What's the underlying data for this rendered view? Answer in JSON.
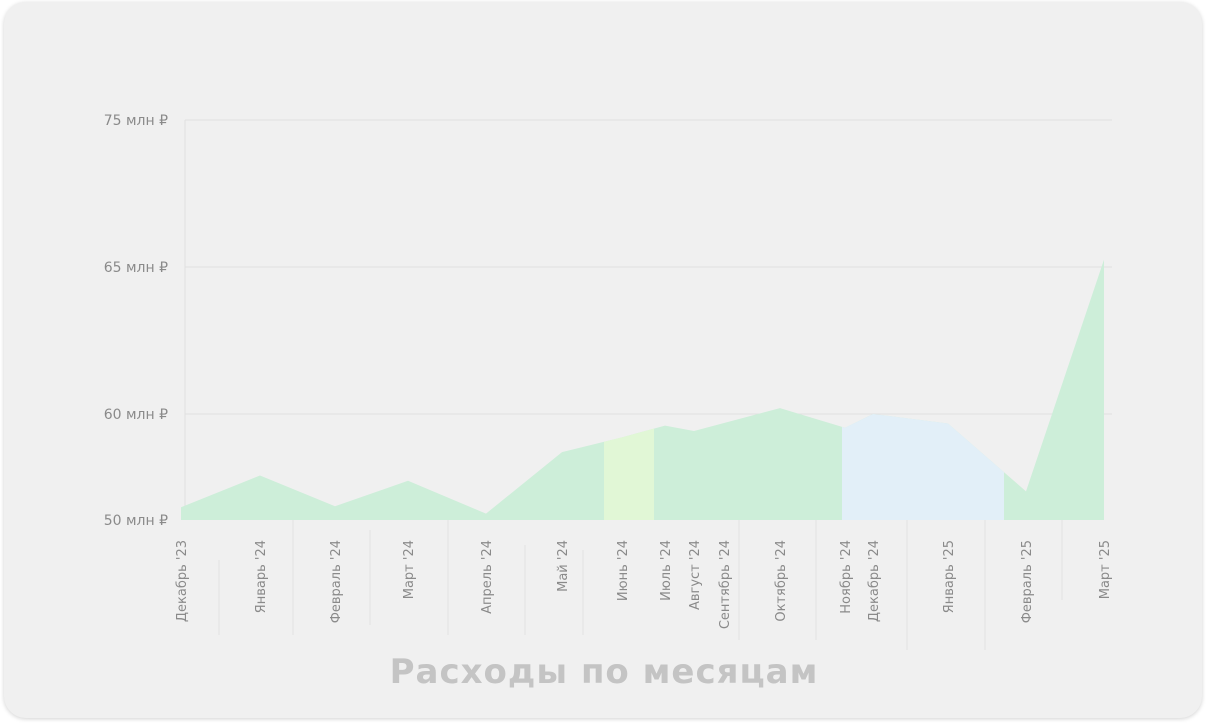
{
  "colors": {
    "card_bg": "#f0f0f0",
    "area_green": "#cdeed9",
    "band_lime": "#e1f7d6",
    "band_blue": "#e2eff8",
    "tick_text": "#8a8a8a",
    "title_text": "#c4c4c4",
    "grid": "#e0e0e0"
  },
  "chart_data": {
    "type": "area",
    "title": "Расходы по месяцам",
    "xlabel": "",
    "ylabel": "",
    "y_ticks": [
      {
        "value": 50,
        "label": "50 млн ₽"
      },
      {
        "value": 60,
        "label": "60 млн ₽"
      },
      {
        "value": 65,
        "label": "65 млн ₽"
      },
      {
        "value": 75,
        "label": "75 млн ₽"
      }
    ],
    "x_ticks": [
      "Декабрь '23",
      "Январь '24",
      "Февраль '24",
      "Март '24",
      "Апрель '24",
      "Май '24",
      "Июнь '24",
      "Июль '24",
      "Август '24",
      "Сентябрь '24",
      "Октябрь '24",
      "Ноябрь '24",
      "Декабрь '24",
      "Январь '25",
      "Февраль '25",
      "Март '25"
    ],
    "points": [
      {
        "x": "Декабрь '23",
        "y": 51.2
      },
      {
        "x": "Январь '24",
        "y": 54.2
      },
      {
        "x": "Февраль '24",
        "y": 51.3
      },
      {
        "x": "Март '24",
        "y": 53.7
      },
      {
        "x": "Апрель '24",
        "y": 50.6
      },
      {
        "x": "Май '24",
        "y": 56.4
      },
      {
        "x": "Июнь '24",
        "y": 57.8
      },
      {
        "x": "Июль '24",
        "y": 58.9
      },
      {
        "x": "Август '24",
        "y": 58.4
      },
      {
        "x": "Октябрь '24",
        "y": 60.2
      },
      {
        "x": "Ноябрь '24",
        "y": 58.7
      },
      {
        "x": "Декабрь '24",
        "y": 60.0
      },
      {
        "x": "Январь '25",
        "y": 59.1
      },
      {
        "x": "Февраль '25",
        "y": 52.7
      },
      {
        "x": "Март '25",
        "y": 65.5
      }
    ],
    "highlight_bands": [
      {
        "from": "Июнь '24",
        "to": "Июль '24",
        "color": "#e1f7d6"
      },
      {
        "from": "Ноябрь '24",
        "to": "Февраль '25",
        "color": "#e2eff8"
      }
    ],
    "grid": true,
    "legend": "none"
  }
}
